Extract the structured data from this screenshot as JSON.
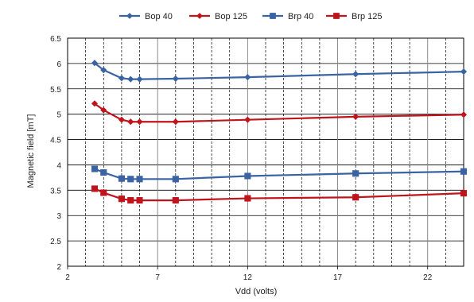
{
  "chart_data": {
    "type": "line",
    "title": "",
    "xlabel": "Vdd (volts)",
    "ylabel": "Magnetic field [mT]",
    "xlim": [
      2,
      24
    ],
    "ylim": [
      2,
      6.5
    ],
    "x_major_ticks": [
      2,
      7,
      12,
      17,
      22
    ],
    "x_minor_gridlines": [
      3,
      4,
      5,
      6,
      8,
      9,
      10,
      11,
      13,
      14,
      15,
      16,
      18,
      19,
      20,
      21,
      23
    ],
    "y_ticks": [
      2,
      2.5,
      3,
      3.5,
      4,
      4.5,
      5,
      5.5,
      6,
      6.5
    ],
    "y_tick_labels": [
      "2",
      "2.5",
      "3",
      "3.5",
      "4",
      "4.5",
      "5",
      "5.5",
      "6",
      "6.5"
    ],
    "x_tick_labels": [
      "2",
      "7",
      "12",
      "17",
      "22"
    ],
    "grid": {
      "major_y": true,
      "major_x": true,
      "minor_x_dashed": true
    },
    "legend_position": "top",
    "x": [
      3.5,
      4,
      5,
      5.5,
      6,
      8,
      12,
      18,
      24
    ],
    "series": [
      {
        "name": "Bop  40",
        "color": "#3A63A4",
        "marker": "diamond",
        "values": [
          6.01,
          5.87,
          5.71,
          5.69,
          5.69,
          5.7,
          5.73,
          5.79,
          5.84
        ]
      },
      {
        "name": "Bop 125",
        "color": "#C0141C",
        "marker": "diamond",
        "values": [
          5.21,
          5.08,
          4.89,
          4.85,
          4.85,
          4.85,
          4.89,
          4.95,
          4.99
        ]
      },
      {
        "name": "Brp  40",
        "color": "#3A63A4",
        "marker": "square",
        "values": [
          3.92,
          3.85,
          3.73,
          3.72,
          3.72,
          3.72,
          3.78,
          3.83,
          3.87
        ]
      },
      {
        "name": "Brp 125",
        "color": "#C0141C",
        "marker": "square",
        "values": [
          3.53,
          3.45,
          3.33,
          3.3,
          3.3,
          3.3,
          3.34,
          3.36,
          3.44
        ]
      }
    ]
  }
}
